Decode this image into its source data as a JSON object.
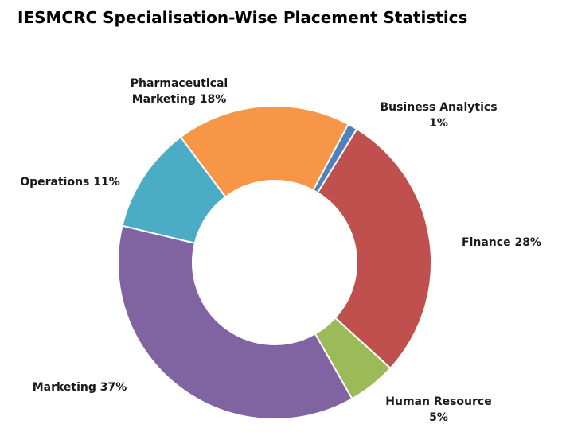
{
  "chart_data": {
    "type": "donut",
    "title": "IESMCRC Specialisation-Wise Placement Statistics",
    "categories": [
      "Business Analytics",
      "Finance",
      "Human Resource",
      "Marketing",
      "Operations",
      "Pharmaceutical Marketing"
    ],
    "values": [
      1,
      28,
      5,
      37,
      11,
      18
    ],
    "value_labels": [
      "1%",
      "28%",
      "5%",
      "37%",
      "11%",
      "18%"
    ],
    "colors": [
      "#4f81bd",
      "#c0504d",
      "#9bbb59",
      "#8064a2",
      "#4bacc6",
      "#f79646"
    ]
  }
}
